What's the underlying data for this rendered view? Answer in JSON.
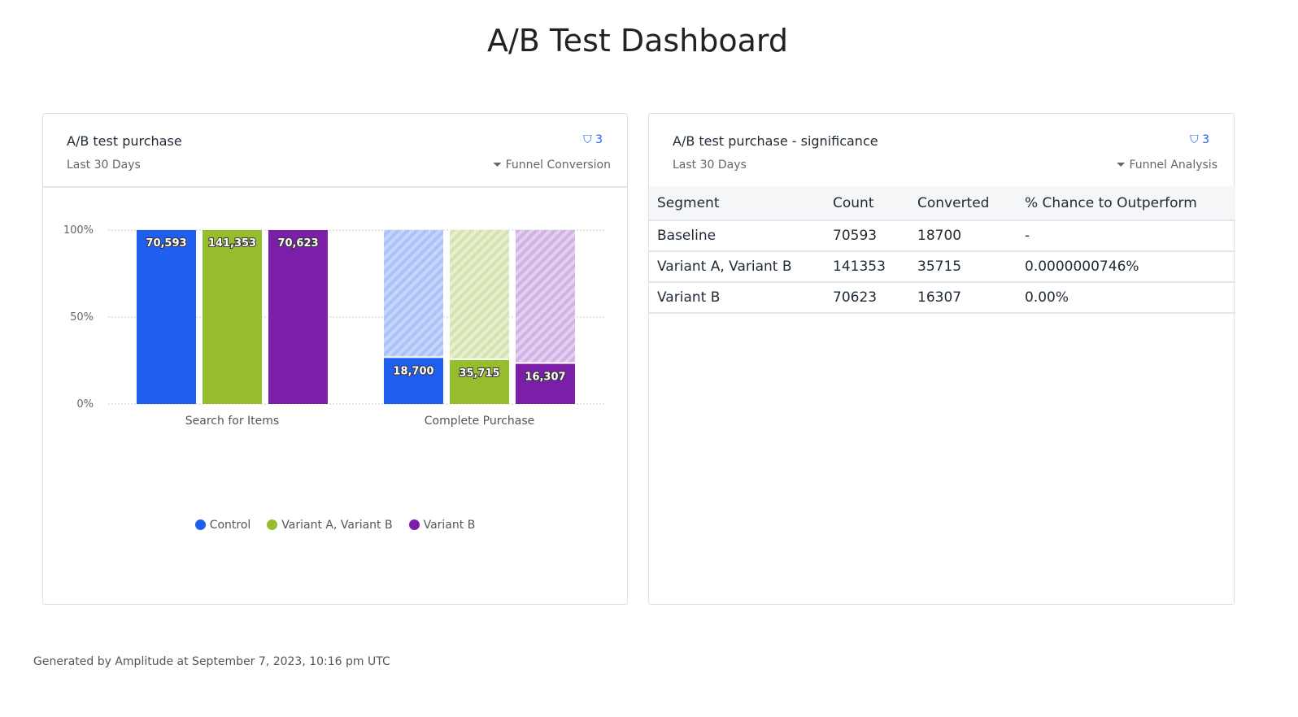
{
  "page_title": "A/B Test Dashboard",
  "footer": "Generated by Amplitude at September 7, 2023, 10:16 pm UTC",
  "colors": {
    "control": "#1f5eef",
    "variant_ab": "#97bd2f",
    "variant_b": "#7c1fa8",
    "accent": "#1f5eef"
  },
  "chart_card": {
    "title": "A/B test purchase",
    "subtitle": "Last 30 Days",
    "filter_count": "3",
    "chart_type_label": "Funnel Conversion",
    "filter_icon": "filter-icon",
    "type_icon": "funnel-icon"
  },
  "table_card": {
    "title": "A/B test purchase - significance",
    "subtitle": "Last 30 Days",
    "filter_count": "3",
    "chart_type_label": "Funnel Analysis",
    "columns": [
      "Segment",
      "Count",
      "Converted",
      "% Chance to Outperform"
    ],
    "rows": [
      [
        "Baseline",
        "70593",
        "18700",
        "-"
      ],
      [
        "Variant A, Variant B",
        "141353",
        "35715",
        "0.0000000746%"
      ],
      [
        "Variant B",
        "70623",
        "16307",
        "0.00%"
      ]
    ]
  },
  "chart_data": {
    "type": "bar",
    "categories": [
      "Search for Items",
      "Complete Purchase"
    ],
    "yticks": [
      "0%",
      "50%",
      "100%"
    ],
    "ylim": [
      0,
      100
    ],
    "grid": true,
    "legend_placement": "bottom",
    "series": [
      {
        "name": "Control",
        "color": "#1f5eef",
        "percent": [
          100,
          26.5
        ],
        "labels": [
          "70,593",
          "18,700"
        ]
      },
      {
        "name": "Variant A, Variant B",
        "color": "#97bd2f",
        "percent": [
          100,
          25.3
        ],
        "labels": [
          "141,353",
          "35,715"
        ]
      },
      {
        "name": "Variant B",
        "color": "#7c1fa8",
        "percent": [
          100,
          23.1
        ],
        "labels": [
          "70,623",
          "16,307"
        ]
      }
    ]
  }
}
